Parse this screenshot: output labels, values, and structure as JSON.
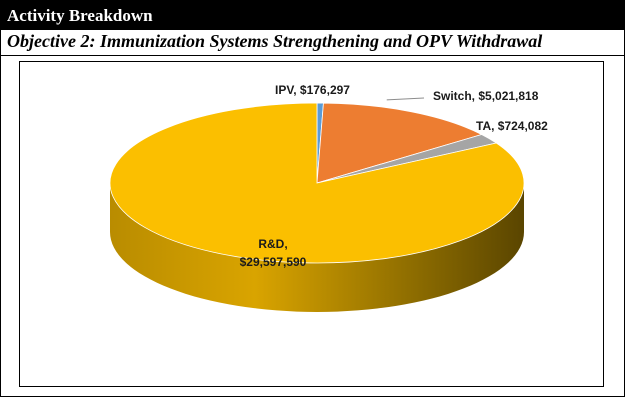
{
  "header": {
    "title": "Activity Breakdown"
  },
  "subheader": {
    "title": "Objective 2: Immunization Systems Strengthening and OPV Withdrawal"
  },
  "colors": {
    "rd": "#FBBF00",
    "ipv": "#5B9BD5",
    "switch": "#ED7D31",
    "ta": "#A5A5A5"
  },
  "chart_data": {
    "type": "pie",
    "slices": [
      {
        "label": "IPV,",
        "value_text": "$176,297",
        "value": 176297,
        "color": "#5B9BD5"
      },
      {
        "label": "Switch,",
        "value_text": "$5,021,818",
        "value": 5021818,
        "color": "#ED7D31"
      },
      {
        "label": "TA,",
        "value_text": "$724,082",
        "value": 724082,
        "color": "#A5A5A5"
      },
      {
        "label": "R&D,",
        "value_text": "$29,597,590",
        "value": 29597590,
        "color": "#FBBF00"
      }
    ]
  }
}
